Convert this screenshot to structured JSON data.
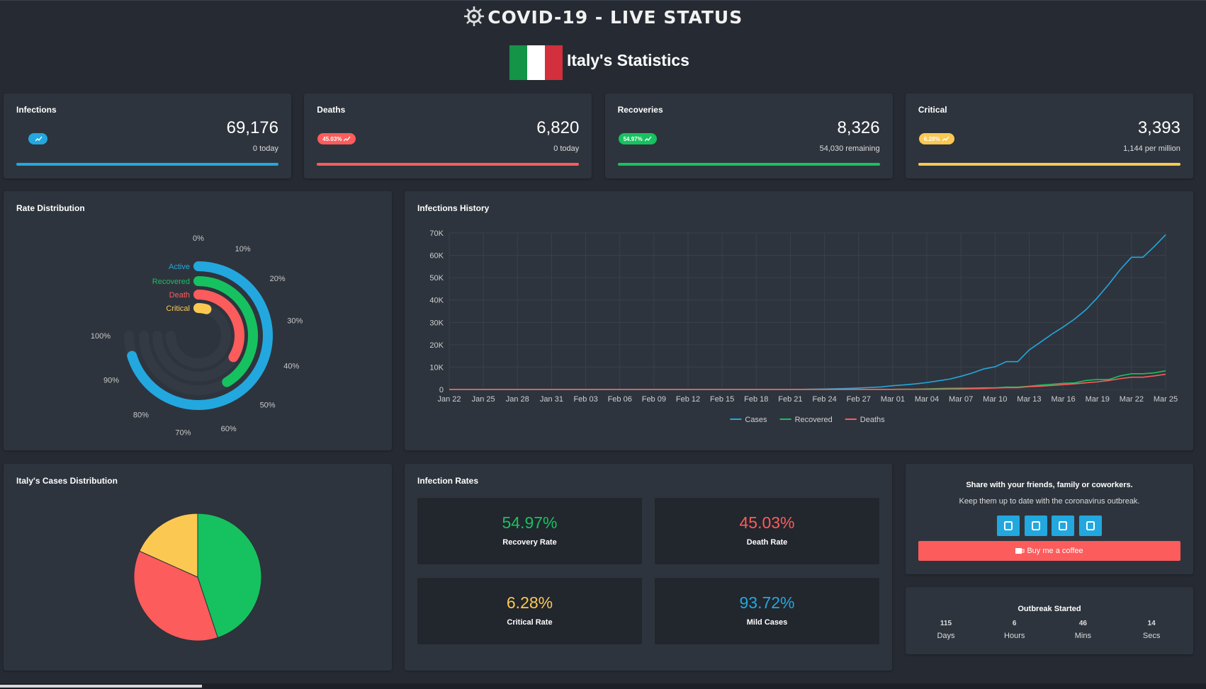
{
  "header": {
    "title": "COVID-19 - LIVE STATUS",
    "subtitle": "Italy's Statistics"
  },
  "cards": [
    {
      "label": "Infections",
      "value": "69,176",
      "note": "0 today",
      "color": "#22a8de"
    },
    {
      "label": "Deaths",
      "badge": "45.03%",
      "value": "6,820",
      "note": "0 today",
      "color": "#fc5c5c"
    },
    {
      "label": "Recoveries",
      "badge": "54.97%",
      "value": "8,326",
      "note": "54,030 remaining",
      "color": "#16c25f"
    },
    {
      "label": "Critical",
      "badge": "6.28%",
      "value": "3,393",
      "note": "1,144 per million",
      "color": "#fbc952"
    }
  ],
  "chart_data": [
    {
      "type": "radialBar",
      "title": "Rate Distribution",
      "series": [
        {
          "name": "Active",
          "color": "#22a8de",
          "value": 93.72
        },
        {
          "name": "Recovered",
          "color": "#16c25f",
          "value": 54.97
        },
        {
          "name": "Death",
          "color": "#fc5c5c",
          "value": 45.03
        },
        {
          "name": "Critical",
          "color": "#fbc952",
          "value": 6.28
        }
      ],
      "ylim": [
        0,
        100
      ],
      "yticks": [
        {
          "value": 0,
          "label": "0%"
        },
        {
          "value": 10,
          "label": "10%"
        },
        {
          "value": 20,
          "label": "20%"
        },
        {
          "value": 30,
          "label": "30%"
        },
        {
          "value": 40,
          "label": "40%"
        },
        {
          "value": 50,
          "label": "50%"
        },
        {
          "value": 60,
          "label": "60%"
        },
        {
          "value": 70,
          "label": "70%"
        },
        {
          "value": 80,
          "label": "80%"
        },
        {
          "value": 90,
          "label": "90%"
        },
        {
          "value": 100,
          "label": "100%"
        }
      ]
    },
    {
      "type": "line",
      "title": "Infections History",
      "categories": [
        "Jan 22",
        null,
        null,
        "Jan 25",
        null,
        null,
        "Jan 28",
        null,
        null,
        "Jan 31",
        null,
        null,
        "Feb 03",
        null,
        null,
        "Feb 06",
        null,
        null,
        "Feb 09",
        null,
        null,
        "Feb 12",
        null,
        null,
        "Feb 15",
        null,
        null,
        "Feb 18",
        null,
        null,
        "Feb 21",
        null,
        null,
        "Feb 24",
        null,
        null,
        "Feb 27",
        null,
        null,
        "Mar 01",
        null,
        null,
        "Mar 04",
        null,
        null,
        "Mar 07",
        null,
        null,
        "Mar 10",
        null,
        null,
        "Mar 13",
        null,
        null,
        "Mar 16",
        null,
        null,
        "Mar 19",
        null,
        null,
        "Mar 22",
        null,
        null,
        "Mar 25"
      ],
      "series": [
        {
          "name": "Cases",
          "color": "#22a8de",
          "values": [
            0,
            0,
            0,
            0,
            0,
            0,
            0,
            0,
            0,
            2,
            2,
            2,
            2,
            2,
            2,
            2,
            3,
            3,
            3,
            3,
            3,
            3,
            3,
            3,
            3,
            3,
            3,
            3,
            3,
            3,
            20,
            62,
            155,
            229,
            322,
            453,
            655,
            888,
            1128,
            1694,
            2036,
            2502,
            3089,
            3858,
            4636,
            5883,
            7375,
            9172,
            10149,
            12462,
            12462,
            17660,
            21157,
            24747,
            27980,
            31506,
            35713,
            41035,
            47021,
            53578,
            59138,
            59138,
            63927,
            69176
          ]
        },
        {
          "name": "Recovered",
          "color": "#16c25f",
          "values": [
            0,
            0,
            0,
            0,
            0,
            0,
            0,
            0,
            0,
            0,
            0,
            0,
            0,
            0,
            0,
            0,
            0,
            0,
            0,
            0,
            0,
            0,
            0,
            0,
            0,
            0,
            0,
            0,
            0,
            0,
            0,
            1,
            2,
            1,
            1,
            3,
            45,
            46,
            46,
            83,
            149,
            160,
            276,
            414,
            523,
            589,
            622,
            724,
            724,
            1045,
            1045,
            1439,
            1966,
            2335,
            2749,
            2941,
            4025,
            4440,
            4440,
            6072,
            7024,
            7024,
            7432,
            8326
          ]
        },
        {
          "name": "Deaths",
          "color": "#fc5c5c",
          "values": [
            0,
            0,
            0,
            0,
            0,
            0,
            0,
            0,
            0,
            0,
            0,
            0,
            0,
            0,
            0,
            0,
            0,
            0,
            0,
            0,
            0,
            0,
            0,
            0,
            0,
            0,
            0,
            0,
            0,
            0,
            1,
            2,
            3,
            7,
            10,
            12,
            17,
            21,
            29,
            34,
            52,
            79,
            107,
            148,
            197,
            233,
            366,
            463,
            631,
            827,
            827,
            1266,
            1441,
            1809,
            2158,
            2503,
            2978,
            3405,
            4032,
            4825,
            5476,
            5476,
            6077,
            6820
          ]
        }
      ],
      "ylim": [
        0,
        70000
      ],
      "yticks": [
        0,
        {
          "value": 10000,
          "label": "10K"
        },
        {
          "value": 20000,
          "label": "20K"
        },
        {
          "value": 30000,
          "label": "30K"
        },
        {
          "value": 40000,
          "label": "40K"
        },
        {
          "value": 50000,
          "label": "50K"
        },
        {
          "value": 60000,
          "label": "60K"
        },
        {
          "value": 70000,
          "label": "70K"
        }
      ],
      "grid": true,
      "legend": "bottom"
    },
    {
      "type": "pie",
      "title": "Italy's Cases Distribution",
      "values": [
        8326,
        6820,
        3393
      ],
      "colors": [
        "#16c25f",
        "#fc5c5c",
        "#fbc952"
      ]
    }
  ],
  "infection_rates": {
    "title": "Infection Rates",
    "tiles": [
      {
        "value": "54.97%",
        "label": "Recovery Rate",
        "color": "#16c25f"
      },
      {
        "value": "45.03%",
        "label": "Death Rate",
        "color": "#fc5c5c"
      },
      {
        "value": "6.28%",
        "label": "Critical Rate",
        "color": "#fbc952"
      },
      {
        "value": "93.72%",
        "label": "Mild Cases",
        "color": "#22a8de"
      }
    ]
  },
  "share": {
    "title": "Share with your friends, family or coworkers.",
    "text": "Keep them up to date with the coronavirus outbreak.",
    "button": "Buy me a coffee"
  },
  "outbreak": {
    "title": "Outbreak Started",
    "counters": [
      {
        "value": "115",
        "unit": "Days"
      },
      {
        "value": "6",
        "unit": "Hours"
      },
      {
        "value": "46",
        "unit": "Mins"
      },
      {
        "value": "14",
        "unit": "Secs"
      }
    ]
  }
}
